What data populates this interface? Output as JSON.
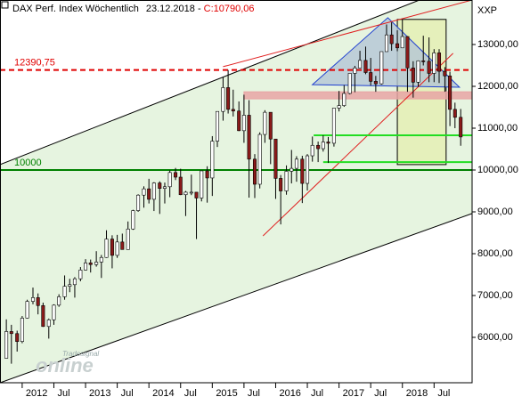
{
  "chart_data": {
    "type": "candlestick",
    "title": "DAX Perf. Index Wöchentlich",
    "date": "23.12.2018 -",
    "last_close_label": "C:10790,06",
    "axis_label": "XXP",
    "watermark": "Tradesignal",
    "watermark_big": "online",
    "xlim": [
      2011.65,
      2019.1
    ],
    "ylim": [
      4915,
      14064
    ],
    "xticks": [
      {
        "value": 2012,
        "label": "2012"
      },
      {
        "value": 2012.5,
        "label": "Jul"
      },
      {
        "value": 2013,
        "label": "2013"
      },
      {
        "value": 2013.5,
        "label": "Jul"
      },
      {
        "value": 2014,
        "label": "2014"
      },
      {
        "value": 2014.5,
        "label": "Jul"
      },
      {
        "value": 2015,
        "label": "2015"
      },
      {
        "value": 2015.5,
        "label": "Jul"
      },
      {
        "value": 2016,
        "label": "2016"
      },
      {
        "value": 2016.5,
        "label": "Jul"
      },
      {
        "value": 2017,
        "label": "2017"
      },
      {
        "value": 2017.5,
        "label": "Jul"
      },
      {
        "value": 2018,
        "label": "2018"
      },
      {
        "value": 2018.5,
        "label": "Jul"
      }
    ],
    "yticks": [
      {
        "value": 6000,
        "label": "6000,00"
      },
      {
        "value": 7000,
        "label": "7000,00"
      },
      {
        "value": 8000,
        "label": "8000,00"
      },
      {
        "value": 9000,
        "label": "9000,00"
      },
      {
        "value": 10000,
        "label": "10000,00"
      },
      {
        "value": 11000,
        "label": "11000,00"
      },
      {
        "value": 12000,
        "label": "12000,00"
      },
      {
        "value": 13000,
        "label": "13000,00"
      }
    ],
    "up_color": "#ffffff",
    "down_color": "#8b1a1a",
    "x": [
      2011.75,
      2011.83,
      2011.92,
      2012.0,
      2012.08,
      2012.17,
      2012.25,
      2012.33,
      2012.42,
      2012.5,
      2012.58,
      2012.67,
      2012.75,
      2012.83,
      2012.92,
      2013.0,
      2013.08,
      2013.17,
      2013.25,
      2013.33,
      2013.42,
      2013.5,
      2013.58,
      2013.67,
      2013.75,
      2013.83,
      2013.92,
      2014.0,
      2014.08,
      2014.17,
      2014.25,
      2014.33,
      2014.42,
      2014.5,
      2014.58,
      2014.67,
      2014.75,
      2014.83,
      2014.92,
      2015.0,
      2015.08,
      2015.17,
      2015.25,
      2015.33,
      2015.42,
      2015.5,
      2015.58,
      2015.67,
      2015.75,
      2015.83,
      2015.92,
      2016.0,
      2016.08,
      2016.17,
      2016.25,
      2016.33,
      2016.42,
      2016.5,
      2016.58,
      2016.67,
      2016.75,
      2016.83,
      2016.92,
      2017.0,
      2017.08,
      2017.17,
      2017.25,
      2017.33,
      2017.42,
      2017.5,
      2017.58,
      2017.67,
      2017.75,
      2017.83,
      2017.92,
      2018.0,
      2018.08,
      2018.17,
      2018.25,
      2018.33,
      2018.42,
      2018.5,
      2018.58,
      2018.67,
      2018.75,
      2018.83,
      2018.92
    ],
    "open": [
      5500,
      6140,
      6090,
      5900,
      6460,
      6860,
      6950,
      6760,
      6260,
      6420,
      6770,
      6970,
      7220,
      7260,
      7400,
      7610,
      7780,
      7740,
      7800,
      7910,
      8350,
      7960,
      8280,
      8100,
      8590,
      9030,
      9400,
      9550,
      9300,
      9690,
      9560,
      9600,
      9940,
      9830,
      9410,
      9470,
      9470,
      9330,
      9980,
      9810,
      10690,
      11400,
      11970,
      11450,
      11410,
      10940,
      11310,
      10260,
      9660,
      10850,
      11380,
      10740,
      9800,
      9500,
      9970,
      10040,
      10260,
      9680,
      10340,
      10590,
      10510,
      10670,
      10640,
      11480,
      11540,
      11830,
      12310,
      12440,
      12620,
      12330,
      12120,
      12060,
      12830,
      13230,
      13020,
      12920,
      13190,
      12440,
      12100,
      12610,
      12600,
      12310,
      12800,
      12360,
      12250,
      11450,
      11260
    ],
    "high": [
      6430,
      6300,
      6160,
      6510,
      6900,
      7190,
      7050,
      6830,
      6450,
      6790,
      7030,
      7480,
      7400,
      7440,
      7680,
      7870,
      7860,
      8060,
      7970,
      8560,
      8440,
      8450,
      8480,
      8770,
      9050,
      9420,
      9610,
      9790,
      9710,
      9730,
      9700,
      9990,
      10050,
      10030,
      9500,
      9890,
      9470,
      9980,
      10090,
      10810,
      11400,
      12220,
      12390,
      11920,
      11640,
      11800,
      11670,
      10380,
      10900,
      11430,
      11380,
      10740,
      9880,
      10110,
      10480,
      10330,
      10340,
      10380,
      10800,
      10680,
      10830,
      10790,
      11480,
      11890,
      12030,
      12310,
      12490,
      12850,
      12950,
      12680,
      12250,
      12830,
      13480,
      13530,
      13340,
      13600,
      13200,
      12600,
      12620,
      13210,
      13170,
      12890,
      12890,
      12460,
      12350,
      11610,
      11460
    ],
    "low": [
      5500,
      5370,
      5660,
      5860,
      6450,
      6790,
      6550,
      6250,
      5970,
      6300,
      6730,
      6900,
      7080,
      6950,
      7340,
      7600,
      7550,
      7690,
      7420,
      7900,
      7650,
      7900,
      8100,
      8100,
      8570,
      9000,
      9100,
      9200,
      9020,
      8950,
      9200,
      9350,
      9760,
      9400,
      8900,
      9400,
      8350,
      9250,
      9220,
      9380,
      10550,
      11180,
      11350,
      11280,
      10930,
      10650,
      9340,
      9330,
      9560,
      10650,
      10140,
      9310,
      8700,
      9410,
      9680,
      9720,
      9210,
      9510,
      10200,
      10190,
      10440,
      10170,
      10560,
      11400,
      11510,
      11810,
      11860,
      12440,
      12290,
      12020,
      11870,
      12040,
      12830,
      12850,
      12840,
      12920,
      11870,
      11730,
      11990,
      12500,
      12100,
      12100,
      12080,
      11870,
      11050,
      11000,
      10580
    ],
    "close": [
      6140,
      6090,
      5900,
      6460,
      6860,
      6950,
      6760,
      6260,
      6420,
      6770,
      6970,
      7220,
      7260,
      7400,
      7610,
      7780,
      7740,
      7800,
      7910,
      8350,
      7960,
      8280,
      8100,
      8590,
      9030,
      9400,
      9550,
      9300,
      9690,
      9560,
      9600,
      9940,
      9830,
      9410,
      9470,
      9470,
      9330,
      9980,
      9810,
      10690,
      11400,
      11970,
      11450,
      11410,
      10940,
      11310,
      10260,
      9660,
      10850,
      11380,
      10740,
      9800,
      9500,
      9970,
      10040,
      10260,
      9680,
      10340,
      10590,
      10510,
      10670,
      10640,
      11480,
      11540,
      11830,
      12310,
      12440,
      12620,
      12330,
      12120,
      12060,
      12830,
      13230,
      13020,
      12920,
      13190,
      12440,
      12100,
      12610,
      12600,
      12310,
      12800,
      12360,
      12250,
      11450,
      11260,
      10790
    ],
    "channel": {
      "color": "#000000",
      "fill": "#e6f4e0",
      "upper": {
        "x": [
          2011.65,
          2018.27
        ],
        "y": [
          10130,
          14064
        ]
      },
      "lower": {
        "x": [
          2011.65,
          2019.1
        ],
        "y": [
          4915,
          8960
        ]
      }
    },
    "rects": [
      {
        "x": [
          2017.92,
          2018.69
        ],
        "y": [
          10130,
          13600
        ],
        "fill": "#e4eeb4",
        "stroke": "#000000"
      },
      {
        "x": [
          2015.5,
          2019.1
        ],
        "y": [
          11700,
          11870
        ],
        "fill": "#e8a4a4",
        "stroke": "#e8a4a4"
      }
    ],
    "polygons": [
      {
        "x": [
          2016.58,
          2017.77,
          2018.9
        ],
        "y": [
          12040,
          13640,
          11980
        ],
        "fill": "#b4c6d6",
        "stroke": "#1f3fd0"
      }
    ],
    "trendlines": [
      {
        "x": [
          2015.17,
          2019.1
        ],
        "y": [
          12470,
          14064
        ],
        "color": "#e02020"
      },
      {
        "x": [
          2015.8,
          2018.8
        ],
        "y": [
          8425,
          12790
        ],
        "color": "#e02020"
      }
    ],
    "segments": [
      {
        "x": [
          2016.6,
          2019.1
        ],
        "y": 10830,
        "color": "#22dd22"
      },
      {
        "x": [
          2016.75,
          2019.1
        ],
        "y": 10190,
        "color": "#22dd22"
      }
    ],
    "hlines": [
      {
        "value": 12390.75,
        "label": "12390,75",
        "color": "#e00000",
        "dashed": true
      },
      {
        "value": 10000,
        "label": "10000",
        "color": "#008000",
        "dashed": false
      }
    ]
  }
}
